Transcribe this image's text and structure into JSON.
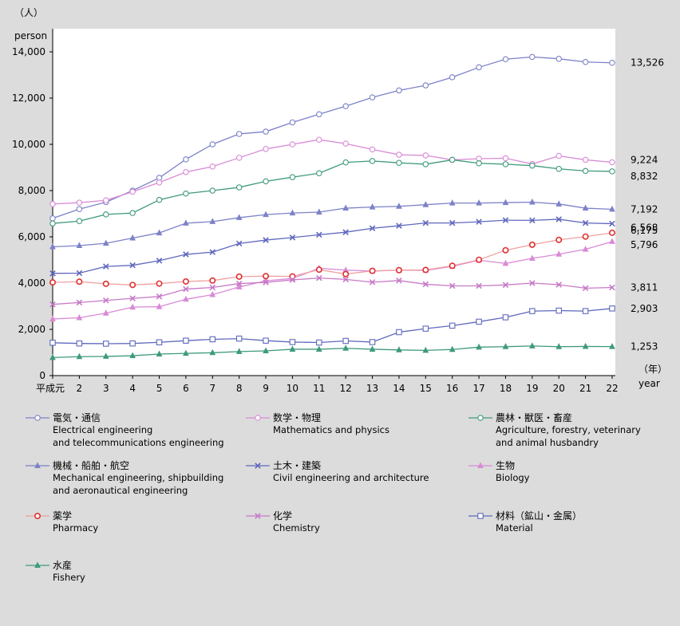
{
  "chart_data": {
    "type": "line",
    "ylabel_ja": "（人）",
    "ylabel": "person",
    "xlabel_ja": "（年）",
    "xlabel": "year",
    "categories": [
      "平成元",
      "2",
      "3",
      "4",
      "5",
      "6",
      "7",
      "8",
      "9",
      "10",
      "11",
      "12",
      "13",
      "14",
      "15",
      "16",
      "17",
      "18",
      "19",
      "20",
      "21",
      "22"
    ],
    "ylim": [
      0,
      15000
    ],
    "yticks": [
      0,
      2000,
      4000,
      6000,
      8000,
      10000,
      12000,
      14000
    ],
    "ytick_labels": [
      "0",
      "2,000",
      "4,000",
      "6,000",
      "8,000",
      "10,000",
      "12,000",
      "14,000"
    ],
    "grid": false,
    "legend_position": "bottom",
    "series": [
      {
        "name_ja": "電気・通信",
        "name": "Electrical engineering and telecommunications engineering",
        "name_lines": [
          "Electrical engineering",
          "and telecommunications engineering"
        ],
        "color": "#7c82c8",
        "marker": "circle",
        "end_label": "13,526",
        "values": [
          6800,
          7200,
          7500,
          8000,
          8550,
          9350,
          10000,
          10450,
          10550,
          10950,
          11300,
          11650,
          12030,
          12330,
          12550,
          12900,
          13330,
          13680,
          13780,
          13700,
          13560,
          13526
        ]
      },
      {
        "name_ja": "数学・物理",
        "name": "Mathematics and physics",
        "name_lines": [
          "Mathematics and physics"
        ],
        "color": "#d98ad6",
        "marker": "circle",
        "end_label": "9,224",
        "values": [
          7420,
          7480,
          7580,
          7950,
          8350,
          8800,
          9040,
          9420,
          9800,
          10000,
          10200,
          10030,
          9780,
          9550,
          9520,
          9330,
          9380,
          9400,
          9150,
          9500,
          9330,
          9224
        ]
      },
      {
        "name_ja": "農林・獣医・畜産",
        "name": "Agriculture, forestry, veterinary and animal husbandry",
        "name_lines": [
          "Agriculture, forestry, veterinary",
          "and animal husbandry"
        ],
        "color": "#3f9a7c",
        "marker": "circle",
        "end_label": "8,832",
        "values": [
          6580,
          6680,
          6970,
          7030,
          7600,
          7870,
          8000,
          8140,
          8400,
          8580,
          8750,
          9220,
          9280,
          9200,
          9140,
          9330,
          9180,
          9140,
          9080,
          8940,
          8850,
          8832
        ]
      },
      {
        "name_ja": "機械・船舶・航空",
        "name": "Mechanical engineering, shipbuilding and aeronautical engineering",
        "name_lines": [
          "Mechanical engineering, shipbuilding",
          "and aeronautical engineering"
        ],
        "color": "#7c82c8",
        "marker": "triangle",
        "end_label": "7,192",
        "values": [
          5570,
          5620,
          5720,
          5950,
          6170,
          6590,
          6660,
          6830,
          6960,
          7030,
          7070,
          7240,
          7290,
          7320,
          7390,
          7460,
          7460,
          7480,
          7500,
          7420,
          7240,
          7192
        ]
      },
      {
        "name_ja": "土木・建築",
        "name": "Civil engineering and architecture",
        "name_lines": [
          "Civil engineering and architecture"
        ],
        "color": "#6068bd",
        "marker": "x",
        "end_label": "6,568",
        "values": [
          4420,
          4430,
          4720,
          4770,
          4970,
          5240,
          5340,
          5710,
          5860,
          5970,
          6090,
          6200,
          6370,
          6480,
          6600,
          6600,
          6650,
          6720,
          6710,
          6760,
          6600,
          6568
        ]
      },
      {
        "name_ja": "生物",
        "name": "Biology",
        "name_lines": [
          "Biology"
        ],
        "color": "#d98ad6",
        "marker": "triangle",
        "end_label": "5,796",
        "values": [
          2450,
          2500,
          2700,
          2960,
          2980,
          3300,
          3500,
          3830,
          4100,
          4200,
          4640,
          4560,
          4520,
          4560,
          4550,
          4720,
          4990,
          4850,
          5070,
          5250,
          5460,
          5796
        ]
      },
      {
        "name_ja": "薬学",
        "name": "Pharmacy",
        "name_lines": [
          "Pharmacy"
        ],
        "color": "#e03030",
        "marker": "circle-red",
        "end_label": "6,175",
        "values": [
          4030,
          4060,
          3970,
          3920,
          3980,
          4070,
          4110,
          4280,
          4300,
          4290,
          4580,
          4390,
          4530,
          4560,
          4570,
          4750,
          5010,
          5420,
          5660,
          5870,
          6010,
          6175
        ]
      },
      {
        "name_ja": "化学",
        "name": "Chemistry",
        "name_lines": [
          "Chemistry"
        ],
        "color": "#c77ac7",
        "marker": "x",
        "end_label": "3,811",
        "values": [
          3080,
          3160,
          3250,
          3340,
          3420,
          3740,
          3810,
          3980,
          4030,
          4140,
          4220,
          4160,
          4040,
          4110,
          3950,
          3880,
          3880,
          3920,
          4000,
          3930,
          3780,
          3811
        ]
      },
      {
        "name_ja": "材料（鉱山・金属）",
        "name": "Material",
        "name_lines": [
          "Material"
        ],
        "color": "#6068bd",
        "marker": "square",
        "end_label": "2,903",
        "values": [
          1420,
          1390,
          1380,
          1390,
          1440,
          1510,
          1570,
          1600,
          1510,
          1450,
          1430,
          1500,
          1450,
          1880,
          2030,
          2160,
          2330,
          2520,
          2790,
          2810,
          2790,
          2903
        ]
      },
      {
        "name_ja": "水産",
        "name": "Fishery",
        "name_lines": [
          "Fishery"
        ],
        "color": "#3f9a7c",
        "marker": "triangle",
        "end_label": "1,253",
        "values": [
          780,
          820,
          830,
          860,
          930,
          960,
          990,
          1040,
          1070,
          1140,
          1140,
          1180,
          1140,
          1110,
          1090,
          1130,
          1230,
          1250,
          1280,
          1250,
          1260,
          1253
        ]
      }
    ]
  }
}
